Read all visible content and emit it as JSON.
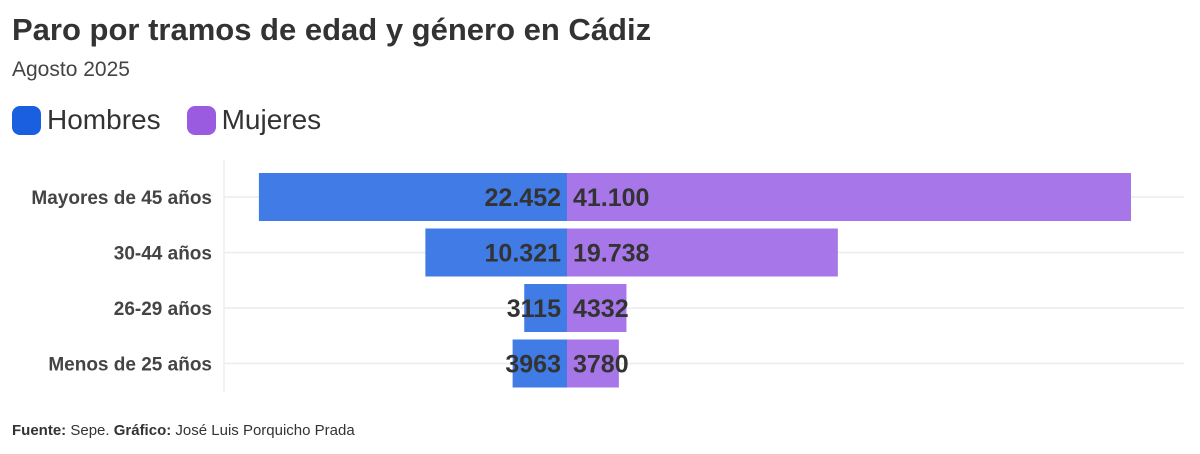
{
  "header": {
    "title": "Paro por tramos de edad y género en Cádiz",
    "subtitle": "Agosto 2025"
  },
  "legend": [
    {
      "label": "Hombres",
      "color": "#1a5fe0"
    },
    {
      "label": "Mujeres",
      "color": "#9b5be0"
    }
  ],
  "footer": {
    "source_label": "Fuente:",
    "source_value": "Sepe.",
    "credit_label": "Gráfico:",
    "credit_value": "José Luis Porquicho Prada"
  },
  "chart_data": {
    "type": "bar",
    "orientation": "horizontal-diverging",
    "categories": [
      "Mayores de 45 años",
      "30-44 años",
      "26-29 años",
      "Menos de 25 años"
    ],
    "series": [
      {
        "name": "Hombres",
        "values": [
          22452,
          10321,
          3115,
          3963
        ],
        "labels": [
          "22.452",
          "10.321",
          "3115",
          "3963"
        ],
        "color": "#407be6"
      },
      {
        "name": "Mujeres",
        "values": [
          41100,
          19738,
          4332,
          3780
        ],
        "labels": [
          "41.100",
          "19.738",
          "4332",
          "3780"
        ],
        "color": "#a776e8"
      }
    ],
    "grid": true,
    "legend_position": "top-left"
  }
}
